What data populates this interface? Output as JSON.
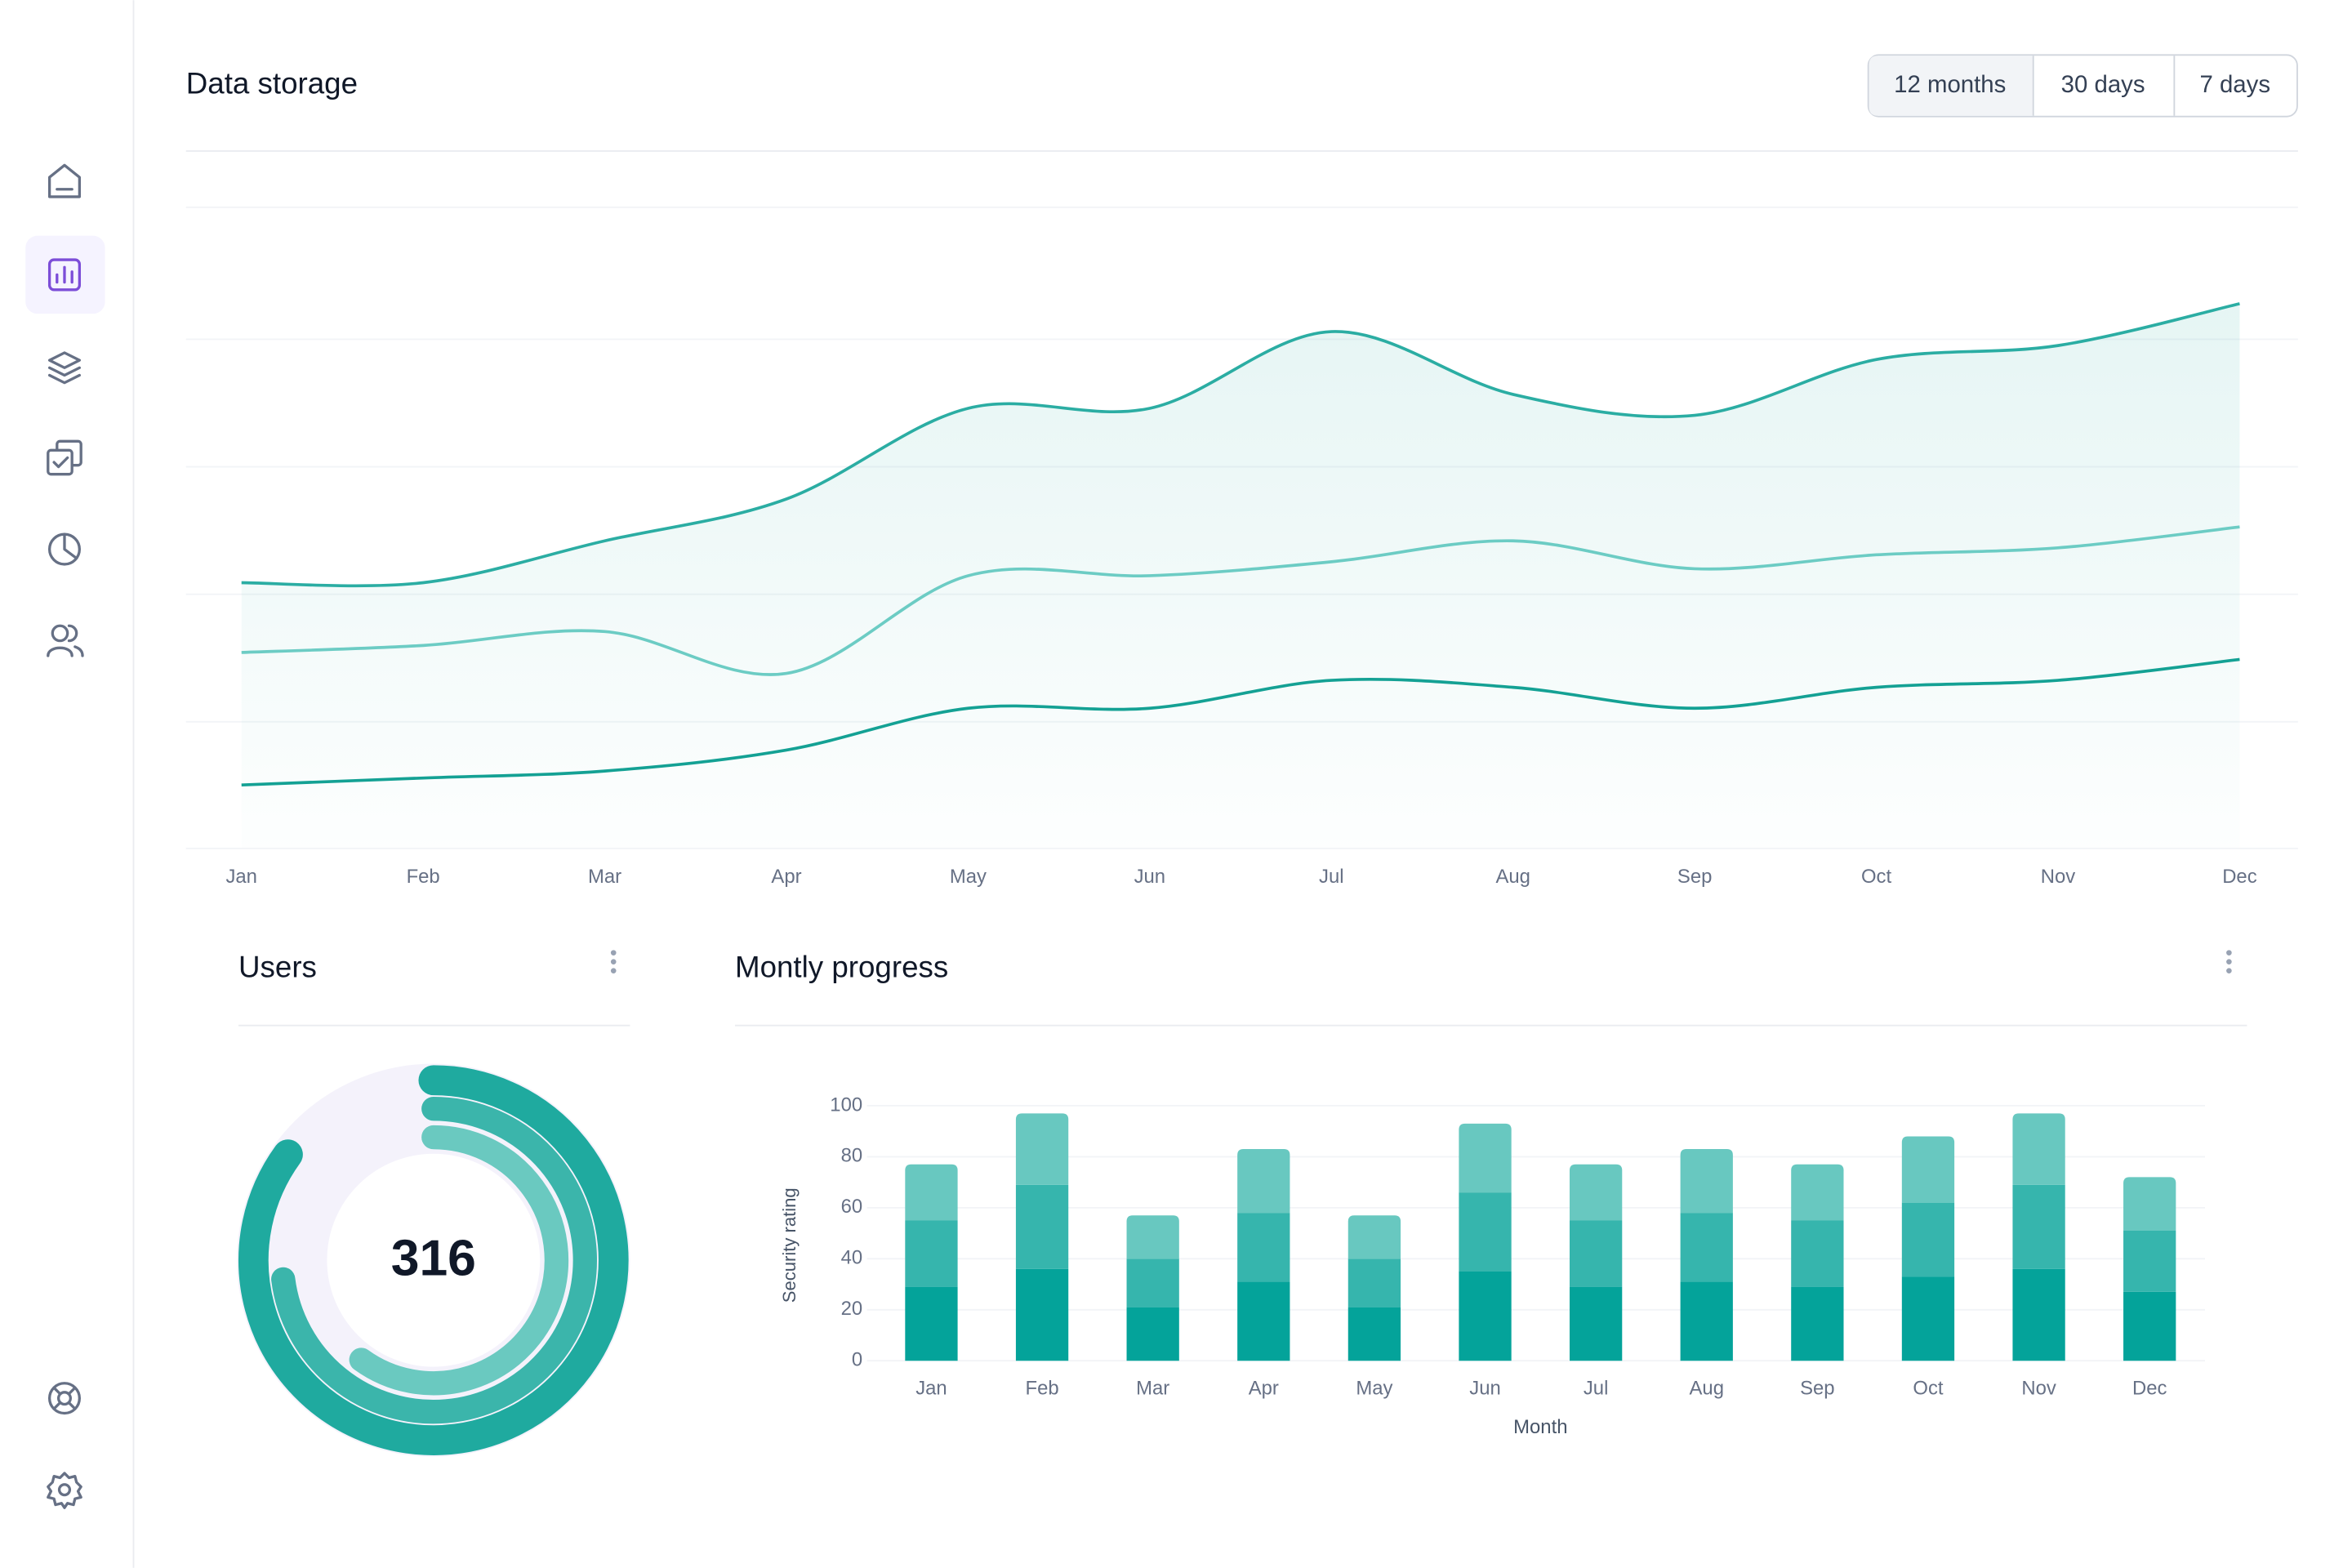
{
  "controls": {
    "ranges": [
      "12 months",
      "30 days",
      "7 days"
    ]
  },
  "chart_data": [
    {
      "type": "line",
      "title": "Data storage",
      "categories": [
        "Jan",
        "Feb",
        "Mar",
        "Apr",
        "May",
        "Jun",
        "Jul",
        "Aug",
        "Sep",
        "Oct",
        "Nov",
        "Dec"
      ],
      "ylim": [
        0,
        100
      ],
      "area": true,
      "series": [
        {
          "color": "#2bada3",
          "values": [
            38,
            38,
            44,
            50,
            63,
            63,
            74,
            65,
            62,
            70,
            72,
            78
          ]
        },
        {
          "color": "#6cccc4",
          "values": [
            28,
            29,
            31,
            25,
            39,
            39,
            41,
            44,
            40,
            42,
            43,
            46
          ]
        },
        {
          "color": "#14a194",
          "values": [
            9,
            10,
            11,
            14,
            20,
            20,
            24,
            23,
            20,
            23,
            24,
            27
          ]
        }
      ]
    },
    {
      "type": "donut",
      "title": "Users",
      "center_label": 316,
      "values": [
        85,
        73,
        60
      ],
      "colors": [
        "#1faa9f",
        "#3bb5ab",
        "#6ac9c0"
      ],
      "track_color": "#f4f2fb"
    },
    {
      "type": "bar",
      "title": "Montly progress",
      "stacked": true,
      "categories": [
        "Jan",
        "Feb",
        "Mar",
        "Apr",
        "May",
        "Jun",
        "Jul",
        "Aug",
        "Sep",
        "Oct",
        "Nov",
        "Dec"
      ],
      "xlabel": "Month",
      "ylabel": "Security rating",
      "ylim": [
        0,
        100
      ],
      "yticks": [
        0,
        20,
        40,
        60,
        80,
        100
      ],
      "grid": true,
      "series": [
        {
          "color": "#04a39a",
          "values": [
            29,
            36,
            21,
            31,
            21,
            35,
            29,
            31,
            29,
            33,
            36,
            27
          ]
        },
        {
          "color": "#36b5ad",
          "values": [
            26,
            33,
            19,
            27,
            19,
            31,
            26,
            27,
            26,
            29,
            33,
            24
          ]
        },
        {
          "color": "#68c8c0",
          "values": [
            22,
            28,
            17,
            25,
            17,
            27,
            22,
            25,
            22,
            26,
            28,
            21
          ]
        }
      ]
    }
  ]
}
